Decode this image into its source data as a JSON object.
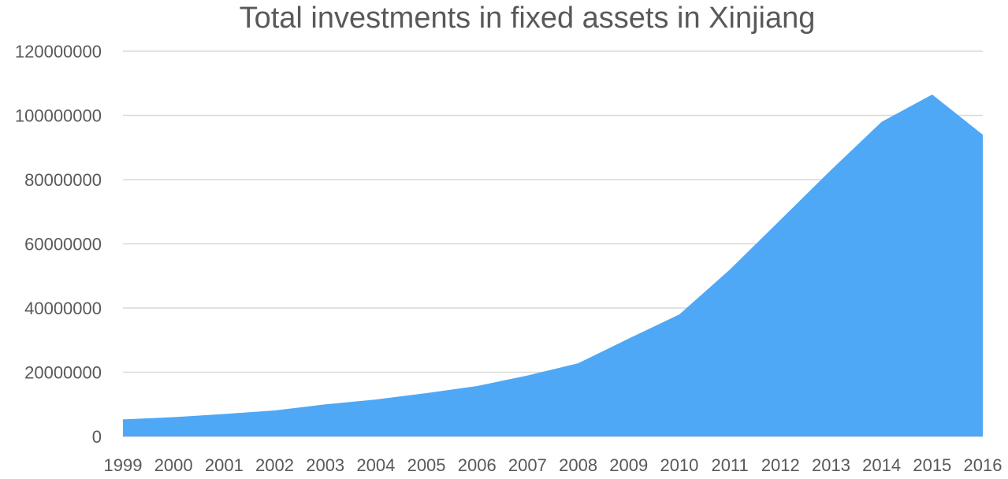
{
  "chart_data": {
    "type": "area",
    "title": "Total investments in fixed assets in Xinjiang",
    "xlabel": "",
    "ylabel": "",
    "x": [
      "1999",
      "2000",
      "2001",
      "2002",
      "2003",
      "2004",
      "2005",
      "2006",
      "2007",
      "2008",
      "2009",
      "2010",
      "2011",
      "2012",
      "2013",
      "2014",
      "2015",
      "2016"
    ],
    "series": [
      {
        "values": [
          5300000,
          6000000,
          7000000,
          8100000,
          10000000,
          11500000,
          13500000,
          15700000,
          19000000,
          22800000,
          30500000,
          38000000,
          52000000,
          67500000,
          83000000,
          98000000,
          106500000,
          94000000
        ],
        "color": "#4ea8f5"
      }
    ],
    "ylim": [
      0,
      120000000
    ],
    "yticks": [
      0,
      20000000,
      40000000,
      60000000,
      80000000,
      100000000,
      120000000
    ],
    "grid": true,
    "legend": "none",
    "colors": {
      "area_fill": "#4ea8f5",
      "grid": "#d9d9d9",
      "text": "#595959"
    }
  }
}
